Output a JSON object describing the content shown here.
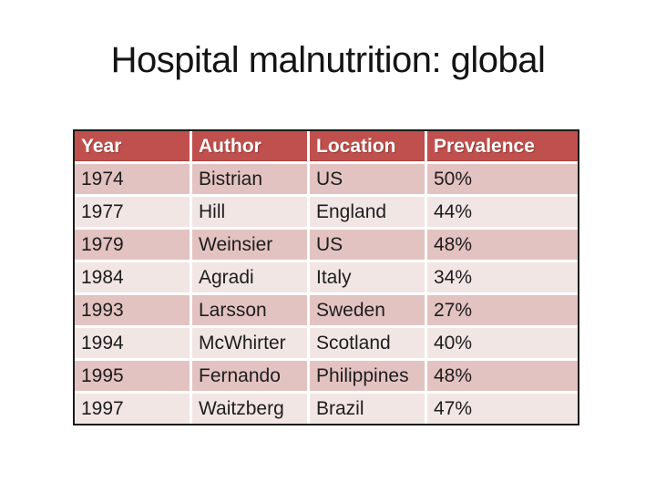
{
  "slide": {
    "title": "Hospital malnutrition: global"
  },
  "table": {
    "columns": [
      "Year",
      "Author",
      "Location",
      "Prevalence"
    ],
    "rows": [
      [
        "1974",
        "Bistrian",
        "US",
        "50%"
      ],
      [
        "1977",
        "Hill",
        "England",
        "44%"
      ],
      [
        "1979",
        "Weinsier",
        "US",
        "48%"
      ],
      [
        "1984",
        "Agradi",
        "Italy",
        "34%"
      ],
      [
        "1993",
        "Larsson",
        "Sweden",
        "27%"
      ],
      [
        "1994",
        "McWhirter",
        "Scotland",
        "40%"
      ],
      [
        "1995",
        "Fernando",
        "Philippines",
        "48%"
      ],
      [
        "1997",
        "Waitzberg",
        "Brazil",
        "47%"
      ]
    ]
  },
  "chart_data": {
    "type": "table",
    "title": "Hospital malnutrition: global",
    "columns": [
      "Year",
      "Author",
      "Location",
      "Prevalence"
    ],
    "rows": [
      [
        "1974",
        "Bistrian",
        "US",
        "50%"
      ],
      [
        "1977",
        "Hill",
        "England",
        "44%"
      ],
      [
        "1979",
        "Weinsier",
        "US",
        "48%"
      ],
      [
        "1984",
        "Agradi",
        "Italy",
        "34%"
      ],
      [
        "1993",
        "Larsson",
        "Sweden",
        "27%"
      ],
      [
        "1994",
        "McWhirter",
        "Scotland",
        "40%"
      ],
      [
        "1995",
        "Fernando",
        "Philippines",
        "48%"
      ],
      [
        "1997",
        "Waitzberg",
        "Brazil",
        "47%"
      ]
    ]
  },
  "colors": {
    "header_bg": "#C0504D",
    "header_text": "#FFFFFF",
    "row_band_dark": "#E3C3C1",
    "row_band_light": "#F2E6E5",
    "table_border": "#1B1B1B",
    "body_text": "#1D1D1D",
    "title_text": "#141414",
    "slide_bg": "#FFFFFF"
  }
}
